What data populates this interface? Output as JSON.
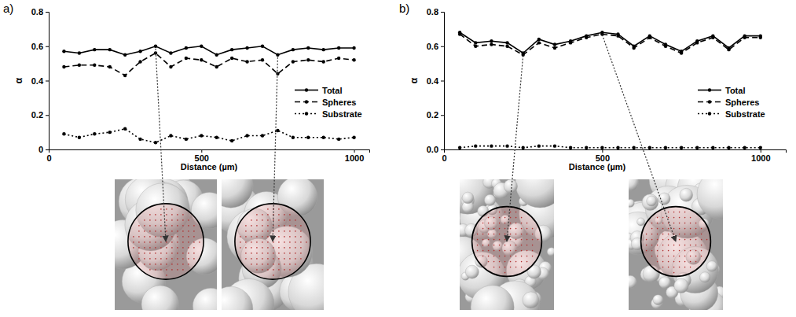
{
  "chart_data": [
    {
      "type": "line",
      "title": "a)",
      "x_label": "Distance (µm)",
      "y_label": "α",
      "x": [
        50,
        100,
        150,
        200,
        250,
        300,
        350,
        400,
        450,
        500,
        550,
        600,
        650,
        700,
        750,
        800,
        850,
        900,
        950,
        1000
      ],
      "series": [
        {
          "name": "Total",
          "color": "#000000",
          "line_style": "solid",
          "marker": "circle",
          "values": [
            0.57,
            0.56,
            0.58,
            0.58,
            0.55,
            0.57,
            0.6,
            0.56,
            0.59,
            0.6,
            0.55,
            0.58,
            0.59,
            0.6,
            0.55,
            0.58,
            0.59,
            0.58,
            0.59,
            0.59
          ]
        },
        {
          "name": "Spheres",
          "color": "#000000",
          "line_style": "dashed",
          "marker": "circle",
          "values": [
            0.48,
            0.49,
            0.49,
            0.48,
            0.43,
            0.51,
            0.56,
            0.48,
            0.53,
            0.52,
            0.48,
            0.53,
            0.51,
            0.52,
            0.44,
            0.51,
            0.52,
            0.51,
            0.53,
            0.52
          ]
        },
        {
          "name": "Substrate",
          "color": "#000000",
          "line_style": "dotted",
          "marker": "circle",
          "values": [
            0.09,
            0.07,
            0.09,
            0.1,
            0.12,
            0.06,
            0.04,
            0.08,
            0.06,
            0.08,
            0.07,
            0.05,
            0.08,
            0.08,
            0.11,
            0.07,
            0.07,
            0.07,
            0.06,
            0.07
          ]
        }
      ],
      "xlim": [
        0,
        1050
      ],
      "xticks": [
        0,
        500,
        1000
      ],
      "ylim": [
        0,
        0.8
      ],
      "yticks": [
        0,
        0.2,
        0.4,
        0.6,
        0.8
      ],
      "legend": "right",
      "grid": false
    },
    {
      "type": "line",
      "title": "b)",
      "x_label": "Distance (µm)",
      "y_label": "α",
      "x": [
        50,
        100,
        150,
        200,
        250,
        300,
        350,
        400,
        450,
        500,
        550,
        600,
        650,
        700,
        750,
        800,
        850,
        900,
        950,
        1000
      ],
      "series": [
        {
          "name": "Total",
          "color": "#000000",
          "line_style": "solid",
          "marker": "circle",
          "values": [
            0.68,
            0.62,
            0.63,
            0.62,
            0.56,
            0.64,
            0.61,
            0.63,
            0.66,
            0.68,
            0.67,
            0.6,
            0.66,
            0.61,
            0.57,
            0.63,
            0.66,
            0.59,
            0.66,
            0.66
          ]
        },
        {
          "name": "Spheres",
          "color": "#000000",
          "line_style": "dashed",
          "marker": "circle",
          "values": [
            0.67,
            0.6,
            0.61,
            0.6,
            0.55,
            0.62,
            0.59,
            0.62,
            0.65,
            0.67,
            0.66,
            0.59,
            0.65,
            0.6,
            0.56,
            0.62,
            0.65,
            0.58,
            0.65,
            0.65
          ]
        },
        {
          "name": "Substrate",
          "color": "#000000",
          "line_style": "dotted",
          "marker": "circle",
          "values": [
            0.01,
            0.02,
            0.02,
            0.02,
            0.01,
            0.02,
            0.02,
            0.01,
            0.01,
            0.01,
            0.01,
            0.01,
            0.01,
            0.01,
            0.01,
            0.01,
            0.01,
            0.01,
            0.01,
            0.01
          ]
        }
      ],
      "xlim": [
        0,
        1080
      ],
      "xticks": [
        0,
        500,
        1000
      ],
      "ylim": [
        0,
        0.8
      ],
      "yticks": [
        {
          "value": 0,
          "label": "0.0"
        },
        0.2,
        0.4,
        0.6,
        0.8
      ],
      "legend": "right",
      "grid": false
    }
  ]
}
